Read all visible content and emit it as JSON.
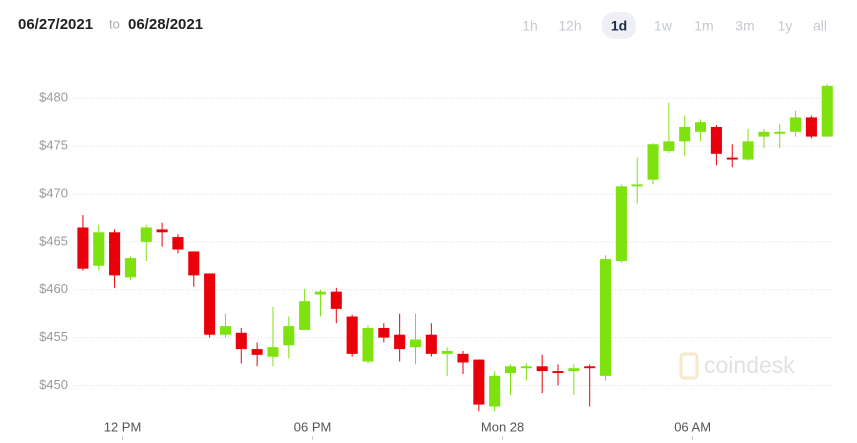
{
  "header": {
    "from": "06/27/2021",
    "to_word": "to",
    "to": "06/28/2021",
    "ranges": [
      "1h",
      "12h",
      "1d",
      "1w",
      "1m",
      "3m",
      "1y",
      "all"
    ],
    "active_range": "1d"
  },
  "watermark": "coindesk",
  "chart_data": {
    "type": "candlestick",
    "up_color": "#7ee20f",
    "down_color": "#e8000b",
    "x": [
      10.75,
      11.25,
      11.75,
      12.25,
      12.75,
      13.25,
      13.75,
      14.25,
      14.75,
      15.25,
      15.75,
      16.25,
      16.75,
      17.25,
      17.75,
      18.25,
      18.75,
      19.25,
      19.75,
      20.25,
      20.75,
      21.25,
      21.75,
      22.25,
      22.75,
      23.25,
      23.75,
      24.25,
      24.75,
      25.25,
      25.75,
      26.25,
      26.75,
      27.25,
      27.75,
      28.25,
      28.75,
      29.25,
      29.75,
      30.25,
      30.75,
      31.25,
      31.75,
      32.25,
      32.75,
      33.25,
      33.75,
      34.25
    ],
    "open": [
      466.5,
      462.5,
      466,
      461.3,
      465,
      466.3,
      465.5,
      464,
      461.7,
      455.3,
      455.5,
      453.8,
      453,
      454.2,
      455.8,
      459.5,
      459.8,
      457.2,
      452.5,
      456,
      455.3,
      454,
      455.3,
      453.3,
      453.3,
      452.7,
      447.8,
      451.3,
      451.8,
      452,
      451.5,
      451.5,
      452,
      451,
      463,
      470.8,
      471.5,
      474.5,
      475.5,
      476.5,
      477,
      473.8,
      473.6,
      476,
      476.3,
      476.5,
      478,
      476
    ],
    "high": [
      467.8,
      466.8,
      466.3,
      463.5,
      466.8,
      467,
      465.8,
      464,
      461.7,
      457.5,
      456,
      454.5,
      458.2,
      457.2,
      460.1,
      460,
      460.2,
      457.4,
      456.3,
      456.5,
      457.5,
      457.5,
      456.5,
      454,
      453.6,
      452.7,
      451.5,
      452.2,
      452.3,
      453.2,
      452.2,
      452.2,
      452.2,
      463.6,
      471,
      473.8,
      475.3,
      479.5,
      478.2,
      477.8,
      477.2,
      475.2,
      476.8,
      476.8,
      477.3,
      478.7,
      478.2,
      481.5
    ],
    "low": [
      462,
      462,
      460.2,
      461,
      463,
      464.5,
      463.8,
      460.3,
      455,
      455,
      452.3,
      452,
      452,
      452.8,
      455.8,
      457.2,
      456.5,
      453,
      452.3,
      454.5,
      452.5,
      452.2,
      453,
      451,
      451.2,
      447.3,
      447.3,
      449,
      450.5,
      449.2,
      450,
      449,
      447.8,
      450.5,
      462.8,
      469,
      471,
      474.3,
      474,
      475.5,
      473,
      472.8,
      473.5,
      474.8,
      474.8,
      476,
      475.8,
      476
    ],
    "close": [
      462.2,
      466,
      461.5,
      463.3,
      466.5,
      466,
      464.2,
      461.5,
      455.3,
      456.2,
      453.8,
      453.2,
      454,
      456.2,
      458.8,
      459.8,
      458,
      453.3,
      456,
      455,
      453.8,
      454.8,
      453.3,
      453.6,
      452.4,
      448,
      451,
      452,
      452,
      451.5,
      451.3,
      451.8,
      451.8,
      463.2,
      470.8,
      471,
      475.2,
      475.5,
      477,
      477.5,
      474.2,
      473.6,
      475.5,
      476.5,
      476.5,
      478,
      476,
      481.3
    ],
    "xlim": [
      10.5,
      34.4
    ],
    "xticks": [
      {
        "value": 12,
        "label": "12 PM"
      },
      {
        "value": 18,
        "label": "06 PM"
      },
      {
        "value": 24,
        "label": "Mon 28"
      },
      {
        "value": 30,
        "label": "06 AM"
      }
    ],
    "ylim": [
      444.3,
      484
    ],
    "yticks": [
      {
        "value": 450,
        "label": "$450"
      },
      {
        "value": 455,
        "label": "$455"
      },
      {
        "value": 460,
        "label": "$460"
      },
      {
        "value": 465,
        "label": "$465"
      },
      {
        "value": 470,
        "label": "$470"
      },
      {
        "value": 475,
        "label": "$475"
      },
      {
        "value": 480,
        "label": "$480"
      }
    ],
    "grid": true
  }
}
